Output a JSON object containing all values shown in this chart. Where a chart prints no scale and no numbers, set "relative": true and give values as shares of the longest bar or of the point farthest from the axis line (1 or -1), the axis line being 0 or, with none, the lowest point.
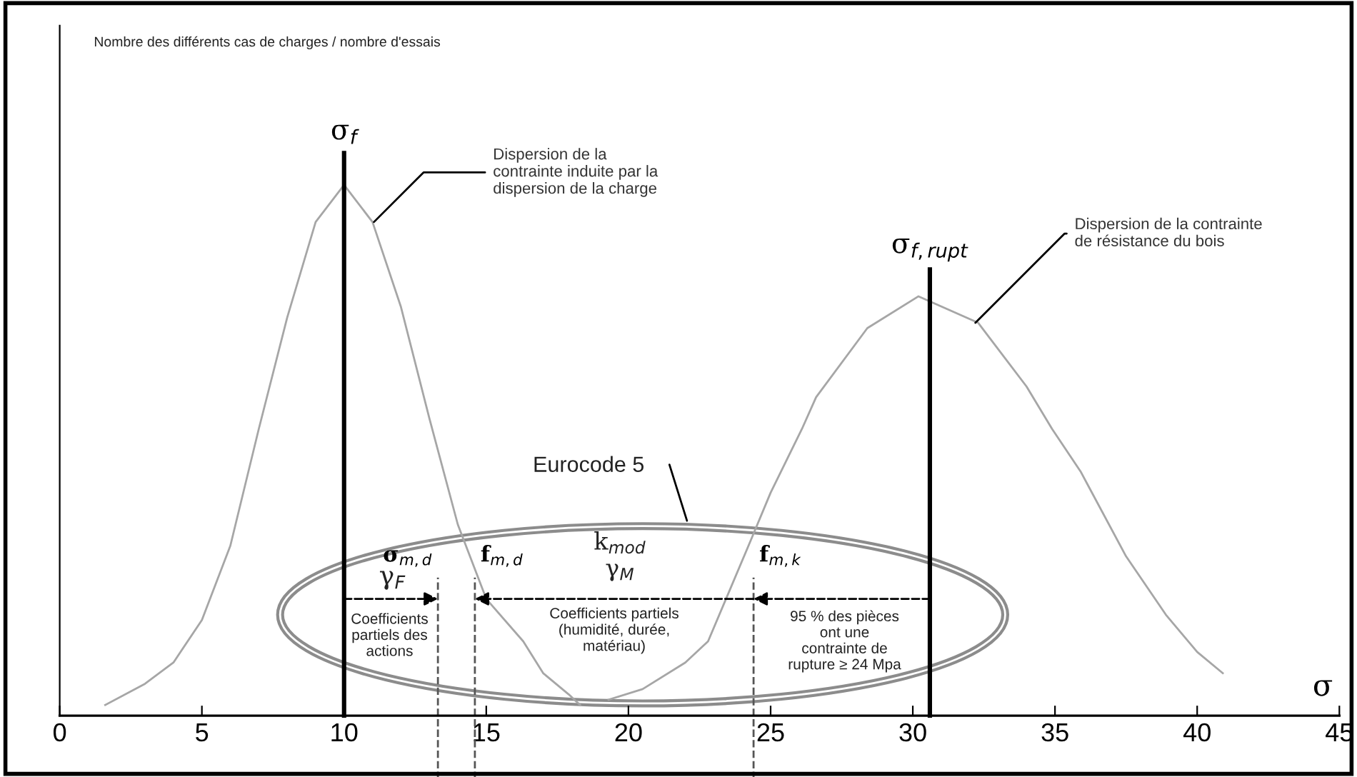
{
  "chart_data": {
    "type": "line",
    "relative": true,
    "xlabel": "σ",
    "x": [
      1.6,
      3,
      4,
      5,
      6,
      7,
      8,
      9,
      10,
      11,
      12,
      13,
      14,
      15,
      16.3,
      17,
      17.9,
      18.3
    ],
    "series": [
      {
        "color": "#a6a6a6",
        "values": [
          0.02,
          0.06,
          0.1,
          0.18,
          0.32,
          0.54,
          0.75,
          0.93,
          1.0,
          0.93,
          0.77,
          0.56,
          0.36,
          0.22,
          0.14,
          0.08,
          0.04,
          0.02
        ]
      },
      {
        "color": "#a6a6a6",
        "x": [
          19.3,
          20.5,
          22,
          22.8,
          24.3,
          25,
          26.1,
          26.6,
          28.4,
          30.2,
          32.3,
          34,
          34.9,
          35.9,
          37.5,
          38.9,
          40,
          40.9
        ],
        "values": [
          0.03,
          0.05,
          0.1,
          0.14,
          0.33,
          0.42,
          0.54,
          0.6,
          0.73,
          0.79,
          0.74,
          0.62,
          0.54,
          0.46,
          0.3,
          0.19,
          0.12,
          0.08
        ]
      }
    ],
    "xlim": [
      0,
      45
    ],
    "xticks": [
      0,
      5,
      10,
      15,
      20,
      25,
      30,
      35,
      40,
      45
    ],
    "tick_labels": "x",
    "grid": false,
    "legend": false,
    "marker": "none",
    "line_style": "solid",
    "ref_lines": [
      {
        "axis": "x",
        "value": 10,
        "label": "σ$_{f}$",
        "color": "#000000",
        "line_style": "solid"
      },
      {
        "axis": "x",
        "value": 30.6,
        "label": "σ$_{f,rupt}$",
        "color": "#000000",
        "line_style": "solid"
      },
      {
        "axis": "x",
        "value": 13.3,
        "label": "σ$_{m,d}$",
        "color": "#555555",
        "line_style": "dashed"
      },
      {
        "axis": "x",
        "value": 14.6,
        "label": "f$_{m,d}$",
        "color": "#555555",
        "line_style": "dashed"
      },
      {
        "axis": "x",
        "value": 24.4,
        "label": "f$_{m,k}$",
        "color": "#555555",
        "line_style": "dashed"
      }
    ],
    "annotations": [
      {
        "text": "Dispersion de la\ncontrainte induite par la\ndispersion de la charge",
        "x": 11.05,
        "y": 0.93
      },
      {
        "text": "Dispersion de la contrainte\nde résistance du bois",
        "x": 32.2,
        "y": 0.74
      },
      "Nombre des différents cas de charges / nombre d'essais",
      "Eurocode 5",
      "γ$_{F}$",
      "k$_{mod}$\nγ$_{M}$",
      "Coefficients\npartiels des\nactions",
      "Coefficients partiels\n(humidité, durée,\nmatériau)",
      "95 % des pièces\nont une\ncontrainte de\nrupture ≥ 24 Mpa"
    ]
  }
}
